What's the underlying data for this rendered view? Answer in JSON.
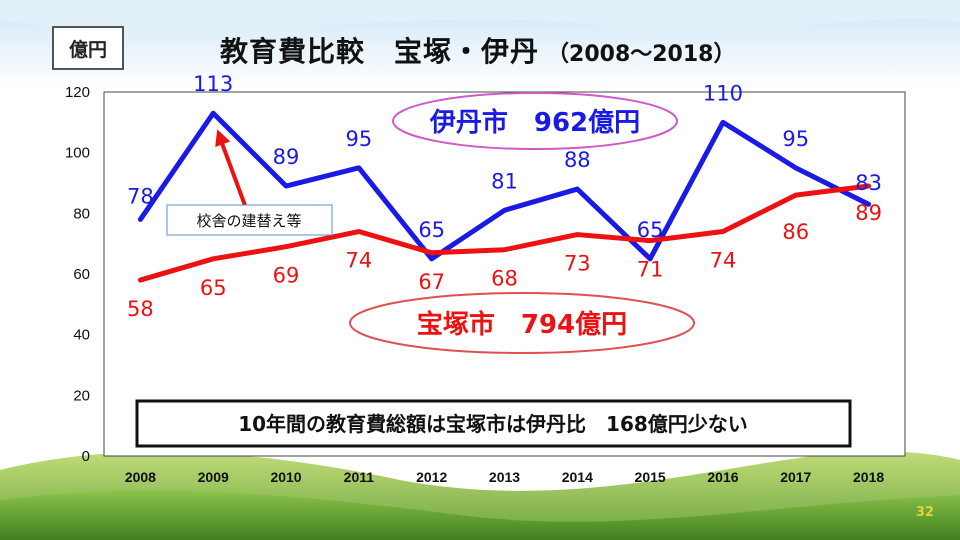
{
  "slide": {
    "title": "教育費比較　宝塚・伊丹",
    "subtitle": "（2008～2018）",
    "unit": "億円",
    "page_number": "32"
  },
  "chart_data": {
    "type": "line",
    "title": "教育費比較　宝塚・伊丹（2008～2018）",
    "xlabel": "",
    "ylabel": "億円",
    "x": [
      "2008",
      "2009",
      "2010",
      "2011",
      "2012",
      "2013",
      "2014",
      "2015",
      "2016",
      "2017",
      "2018"
    ],
    "ylim": [
      0,
      120
    ],
    "yticks": [
      0,
      20,
      40,
      60,
      80,
      100,
      120
    ],
    "grid": false,
    "series": [
      {
        "name": "伊丹市",
        "color": "#1a1ae6",
        "values": [
          78,
          113,
          89,
          95,
          65,
          81,
          88,
          65,
          110,
          95,
          83
        ]
      },
      {
        "name": "宝塚市",
        "color": "#ee1111",
        "values": [
          58,
          65,
          69,
          74,
          67,
          68,
          73,
          71,
          74,
          86,
          89
        ]
      }
    ],
    "annotations": {
      "itami_total": "伊丹市　962億円",
      "takarazuka_total": "宝塚市　794億円",
      "note": "校舎の建替え等",
      "summary": "10年間の教育費総額は宝塚市は伊丹比　168億円少ない"
    }
  }
}
